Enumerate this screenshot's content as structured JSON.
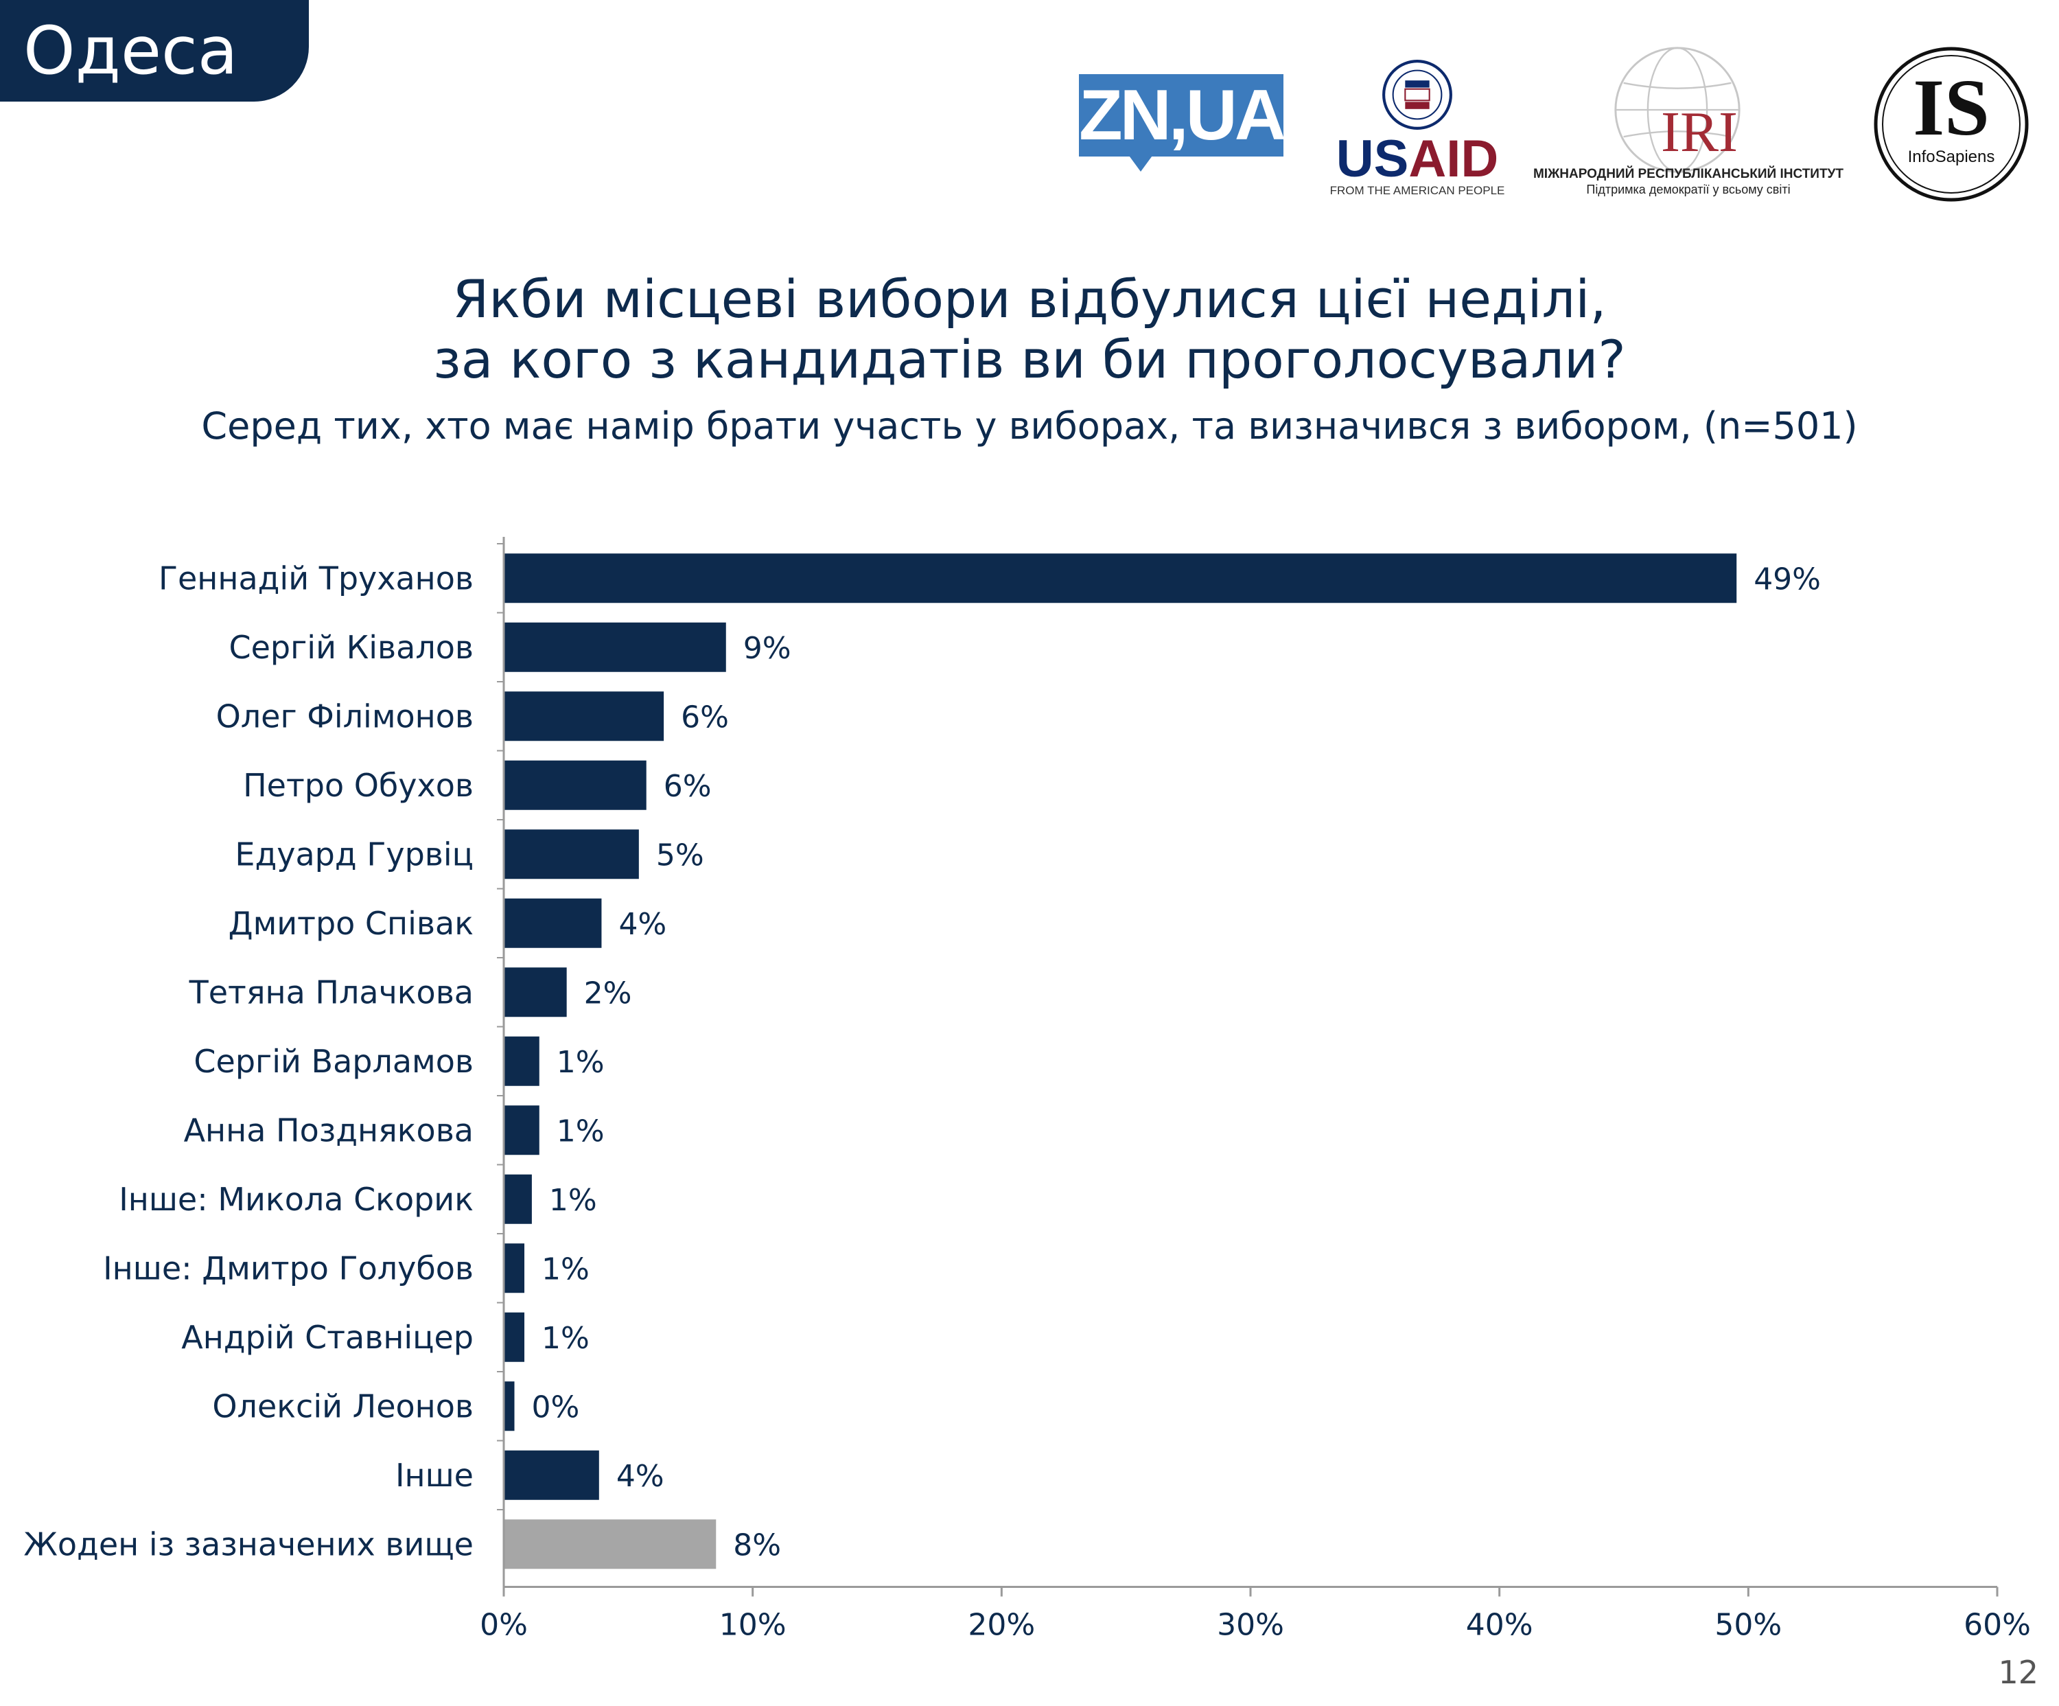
{
  "header": {
    "city": "Одеса"
  },
  "logos": {
    "zn": "ZN,UA",
    "usaid_us": "US",
    "usaid_aid": "AID",
    "usaid_sub": "FROM THE AMERICAN PEOPLE",
    "iri": "IRI",
    "iri_sub1": "МІЖНАРОДНИЙ РЕСПУБЛІКАНСЬКИЙ ІНСТИТУТ",
    "iri_sub2": "Підтримка демократії у всьому світі",
    "is": "IS",
    "is_sub": "InfoSapiens"
  },
  "chart_data": {
    "type": "bar",
    "orientation": "horizontal",
    "title": "Якби місцеві вибори відбулися цієї неділі,",
    "title_line2": "за кого з кандидатів ви би проголосували?",
    "subtitle": "Серед тих, хто має намір брати участь у виборах, та визначився з вибором, (n=501)",
    "categories": [
      "Геннадій Труханов",
      "Сергій Ківалов",
      "Олег Філімонов",
      "Петро Обухов",
      "Едуард Гурвіц",
      "Дмитро Співак",
      "Тетяна Плачкова",
      "Сергій Варламов",
      "Анна Позднякова",
      "Інше: Микола Скорик",
      "Інше: Дмитро Голубов",
      "Андрій Ставніцер",
      "Олексій Леонов",
      "Інше",
      "Жоден із зазначених вище"
    ],
    "values": [
      49.5,
      8.9,
      6.4,
      5.7,
      5.4,
      3.9,
      2.5,
      1.4,
      1.4,
      1.1,
      0.8,
      0.8,
      0.4,
      3.8,
      8.5
    ],
    "value_labels": [
      "49%",
      "9%",
      "6%",
      "6%",
      "5%",
      "4%",
      "2%",
      "1%",
      "1%",
      "1%",
      "1%",
      "1%",
      "0%",
      "4%",
      "8%"
    ],
    "bar_colors": [
      "#0d2a4d",
      "#0d2a4d",
      "#0d2a4d",
      "#0d2a4d",
      "#0d2a4d",
      "#0d2a4d",
      "#0d2a4d",
      "#0d2a4d",
      "#0d2a4d",
      "#0d2a4d",
      "#0d2a4d",
      "#0d2a4d",
      "#0d2a4d",
      "#0d2a4d",
      "#a6a6a6"
    ],
    "xlim": [
      0,
      60
    ],
    "xticks": [
      0,
      10,
      20,
      30,
      40,
      50,
      60
    ],
    "xtick_labels": [
      "0%",
      "10%",
      "20%",
      "30%",
      "40%",
      "50%",
      "60%"
    ],
    "grid": false,
    "legend": "none"
  },
  "footer": {
    "page_number": "12"
  }
}
